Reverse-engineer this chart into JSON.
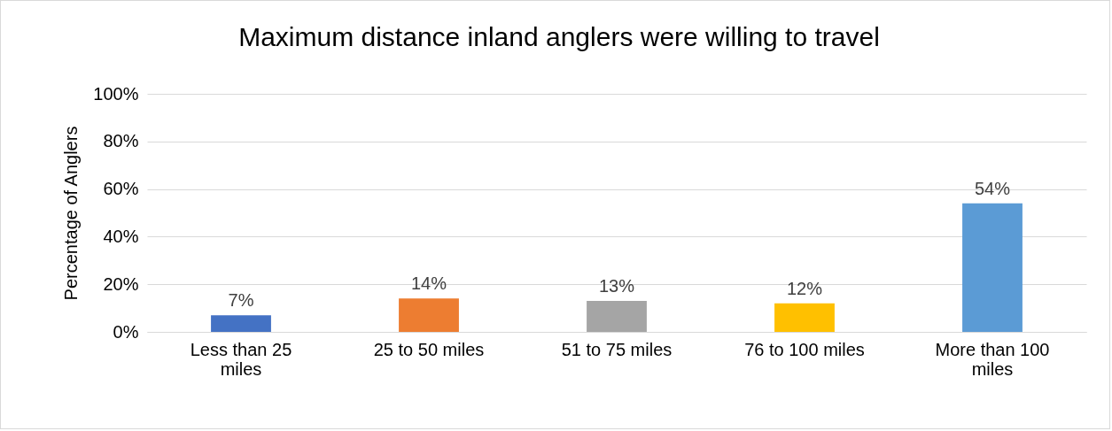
{
  "chart_data": {
    "type": "bar",
    "title": "Maximum distance inland anglers were willing to travel",
    "ylabel": "Percentage of Anglers",
    "categories": [
      "Less than 25 miles",
      "25 to 50 miles",
      "51 to 75 miles",
      "76 to 100 miles",
      "More than 100 miles"
    ],
    "values": [
      7,
      14,
      13,
      12,
      54
    ],
    "colors": [
      "#4472c4",
      "#ed7d31",
      "#a5a5a5",
      "#ffc000",
      "#5b9bd5"
    ],
    "value_labels": [
      "7%",
      "14%",
      "13%",
      "12%",
      "54%"
    ],
    "ylim": [
      0,
      100
    ],
    "yticks": [
      {
        "value": 0,
        "label": "0%"
      },
      {
        "value": 20,
        "label": "20%"
      },
      {
        "value": 40,
        "label": "40%"
      },
      {
        "value": 60,
        "label": "60%"
      },
      {
        "value": 80,
        "label": "80%"
      },
      {
        "value": 100,
        "label": "100%"
      }
    ],
    "grid": "y"
  }
}
